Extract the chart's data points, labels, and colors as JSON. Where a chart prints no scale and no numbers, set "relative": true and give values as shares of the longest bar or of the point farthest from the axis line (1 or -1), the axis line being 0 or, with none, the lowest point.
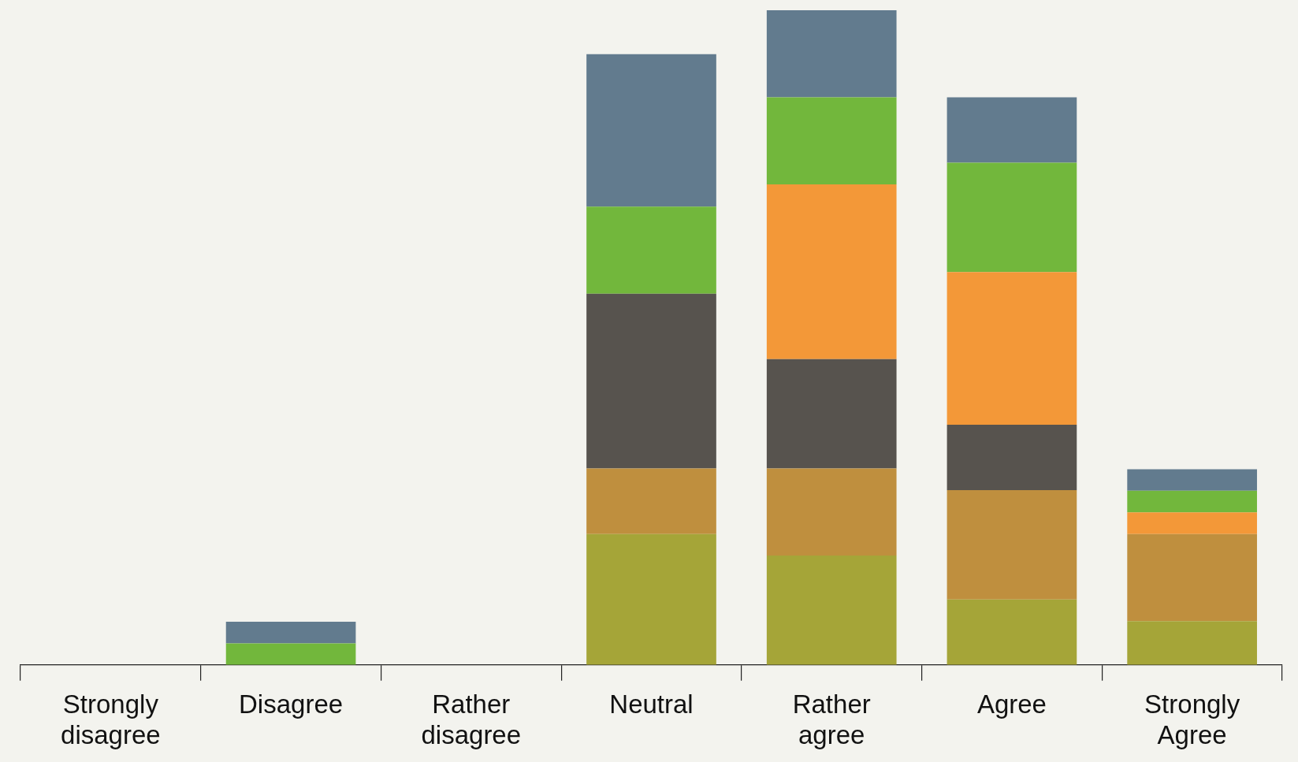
{
  "chart_data": {
    "type": "bar",
    "stacked": true,
    "relative": true,
    "grid": false,
    "legend": false,
    "categories": [
      "Strongly disagree",
      "Disagree",
      "Rather disagree",
      "Neutral",
      "Rather agree",
      "Agree",
      "Strongly Agree"
    ],
    "series": [
      {
        "color": "#a5a538",
        "values": [
          0,
          0,
          0,
          0.2,
          0.167,
          0.1,
          0.067
        ]
      },
      {
        "color": "#bf8f3e",
        "values": [
          0,
          0,
          0,
          0.1,
          0.133,
          0.167,
          0.133
        ]
      },
      {
        "color": "#57534e",
        "values": [
          0,
          0,
          0,
          0.267,
          0.167,
          0.1,
          0
        ]
      },
      {
        "color": "#f39838",
        "values": [
          0,
          0,
          0,
          0,
          0.267,
          0.233,
          0.033
        ]
      },
      {
        "color": "#72b73c",
        "values": [
          0,
          0.033,
          0,
          0.133,
          0.133,
          0.167,
          0.033
        ]
      },
      {
        "color": "#627b8e",
        "values": [
          0,
          0.033,
          0,
          0.233,
          0.133,
          0.1,
          0.033
        ]
      }
    ]
  }
}
